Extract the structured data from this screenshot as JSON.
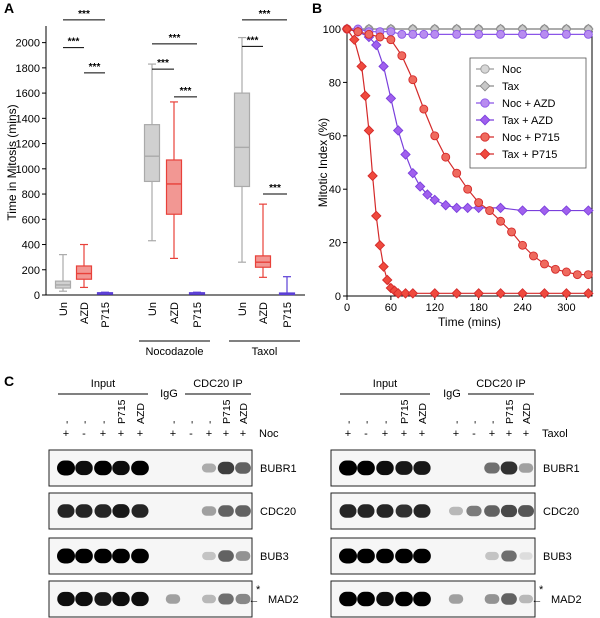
{
  "panel_labels": {
    "a": "A",
    "b": "B",
    "c": "C"
  },
  "chart_data": [
    {
      "type": "box",
      "panel": "A",
      "ylabel": "Time in Mitosis (mins)",
      "ylim": [
        0,
        2100
      ],
      "yticks": [
        0,
        200,
        400,
        600,
        800,
        1000,
        1200,
        1400,
        1600,
        1800,
        2000
      ],
      "boxes": [
        {
          "group": "none",
          "label": "Un",
          "color": "#aaaaaa",
          "min": 30,
          "q1": 55,
          "median": 80,
          "q3": 110,
          "max": 320
        },
        {
          "group": "none",
          "label": "AZD",
          "color": "#e8413a",
          "min": 60,
          "q1": 125,
          "median": 170,
          "q3": 230,
          "max": 400
        },
        {
          "group": "none",
          "label": "P715",
          "color": "#5b3fd6",
          "min": 8,
          "q1": 12,
          "median": 15,
          "q3": 18,
          "max": 22
        },
        {
          "group": "Nocodazole",
          "label": "Un",
          "color": "#aaaaaa",
          "min": 430,
          "q1": 900,
          "median": 1100,
          "q3": 1350,
          "max": 1830
        },
        {
          "group": "Nocodazole",
          "label": "AZD",
          "color": "#e8413a",
          "min": 290,
          "q1": 640,
          "median": 880,
          "q3": 1070,
          "max": 1530
        },
        {
          "group": "Nocodazole",
          "label": "P715",
          "color": "#5b3fd6",
          "min": 8,
          "q1": 12,
          "median": 15,
          "q3": 18,
          "max": 22
        },
        {
          "group": "Taxol",
          "label": "Un",
          "color": "#aaaaaa",
          "min": 260,
          "q1": 860,
          "median": 1170,
          "q3": 1600,
          "max": 2040
        },
        {
          "group": "Taxol",
          "label": "AZD",
          "color": "#e8413a",
          "min": 140,
          "q1": 220,
          "median": 260,
          "q3": 310,
          "max": 720
        },
        {
          "group": "Taxol",
          "label": "P715",
          "color": "#5b3fd6",
          "min": 5,
          "q1": 10,
          "median": 13,
          "q3": 16,
          "max": 145
        }
      ],
      "group_labels": [
        "Nocodazole",
        "Taxol"
      ],
      "significance": [
        {
          "from": 0,
          "to": 2,
          "y": 2180,
          "label": "***"
        },
        {
          "from": 0,
          "to": 1,
          "y": 1960,
          "label": "***"
        },
        {
          "from": 1,
          "to": 2,
          "y": 1760,
          "label": "***"
        },
        {
          "from": 3,
          "to": 5,
          "y": 1990,
          "label": "***"
        },
        {
          "from": 3,
          "to": 4,
          "y": 1790,
          "label": "***"
        },
        {
          "from": 4,
          "to": 5,
          "y": 1570,
          "label": "***"
        },
        {
          "from": 6,
          "to": 8,
          "y": 2180,
          "label": "***"
        },
        {
          "from": 6,
          "to": 7,
          "y": 1970,
          "label": "***"
        },
        {
          "from": 7,
          "to": 8,
          "y": 800,
          "label": "***"
        }
      ]
    },
    {
      "type": "line",
      "panel": "B",
      "xlabel": "Time (mins)",
      "ylabel": "Mitotic Index (%)",
      "xlim": [
        0,
        335
      ],
      "ylim": [
        0,
        100
      ],
      "xticks": [
        0,
        60,
        120,
        180,
        240,
        300
      ],
      "yticks": [
        0,
        20,
        40,
        60,
        80,
        100
      ],
      "legend_position": "right",
      "series": [
        {
          "name": "Noc",
          "color": "#9a9a9a",
          "marker": "circle",
          "fill": "#d6d6d6",
          "x": [
            0,
            30,
            60,
            90,
            120,
            150,
            180,
            210,
            240,
            270,
            300,
            330
          ],
          "y": [
            100,
            100,
            100,
            100,
            100,
            100,
            100,
            100,
            100,
            100,
            100,
            100
          ]
        },
        {
          "name": "Tax",
          "color": "#8a8a8a",
          "marker": "diamond",
          "fill": "#c8c8c8",
          "x": [
            0,
            30,
            60,
            90,
            120,
            150,
            180,
            210,
            240,
            270,
            300,
            330
          ],
          "y": [
            100,
            100,
            100,
            100,
            100,
            100,
            100,
            100,
            100,
            100,
            100,
            100
          ]
        },
        {
          "name": "Noc + AZD",
          "color": "#8a55e8",
          "marker": "circle",
          "fill": "#b88cf0",
          "x": [
            0,
            15,
            30,
            45,
            60,
            75,
            90,
            105,
            120,
            150,
            180,
            210,
            240,
            270,
            300,
            330
          ],
          "y": [
            100,
            100,
            99,
            99,
            99,
            98,
            98,
            98,
            98,
            98,
            98,
            98,
            98,
            98,
            98,
            98
          ]
        },
        {
          "name": "Tax + AZD",
          "color": "#7a3fdc",
          "marker": "diamond",
          "fill": "#a060ee",
          "x": [
            0,
            15,
            30,
            40,
            50,
            60,
            70,
            80,
            90,
            100,
            110,
            120,
            135,
            150,
            165,
            180,
            210,
            240,
            270,
            300,
            330
          ],
          "y": [
            100,
            99,
            97,
            94,
            86,
            74,
            62,
            53,
            46,
            41,
            38,
            36,
            34,
            33,
            33,
            33,
            33,
            32,
            32,
            32,
            32
          ]
        },
        {
          "name": "Noc + P715",
          "color": "#d42a2a",
          "marker": "circle",
          "fill": "#ef6a5e",
          "x": [
            0,
            15,
            30,
            45,
            60,
            75,
            90,
            105,
            120,
            135,
            150,
            165,
            180,
            195,
            210,
            225,
            240,
            255,
            270,
            285,
            300,
            315,
            330
          ],
          "y": [
            100,
            99,
            98,
            97,
            96,
            90,
            81,
            70,
            60,
            52,
            46,
            40,
            35,
            32,
            28,
            24,
            19,
            15,
            12,
            10,
            9,
            8,
            8
          ]
        },
        {
          "name": "Tax + P715",
          "color": "#d42a2a",
          "marker": "diamond",
          "fill": "#ef4a3e",
          "x": [
            0,
            10,
            20,
            25,
            30,
            35,
            40,
            45,
            50,
            55,
            60,
            65,
            70,
            80,
            90,
            120,
            150,
            180,
            210,
            240,
            270,
            300,
            330
          ],
          "y": [
            100,
            96,
            86,
            75,
            62,
            45,
            30,
            19,
            11,
            6,
            3,
            2,
            1,
            1,
            1,
            1,
            1,
            1,
            1,
            1,
            1,
            1,
            1
          ]
        }
      ]
    }
  ],
  "blots": [
    {
      "title_input": "Input",
      "title_igg": "IgG",
      "title_ip": "CDC20 IP",
      "treatment": "Noc",
      "drug_labels": [
        "-",
        "-",
        "-",
        "P715",
        "AZD",
        "-",
        "-",
        "-",
        "P715",
        "AZD"
      ],
      "signs": [
        "+",
        "-",
        "+",
        "+",
        "+",
        "+",
        "-",
        "+",
        "+",
        "+"
      ],
      "rows": [
        {
          "label": "BUBR1",
          "marker": "",
          "note": ""
        },
        {
          "label": "CDC20",
          "marker": "",
          "note": ""
        },
        {
          "label": "BUB3",
          "marker": "",
          "note": ""
        },
        {
          "label": "MAD2",
          "marker": "←",
          "note": "*"
        }
      ]
    },
    {
      "title_input": "Input",
      "title_igg": "IgG",
      "title_ip": "CDC20 IP",
      "treatment": "Taxol",
      "drug_labels": [
        "-",
        "-",
        "-",
        "P715",
        "AZD",
        "-",
        "-",
        "-",
        "P715",
        "AZD"
      ],
      "signs": [
        "+",
        "-",
        "+",
        "+",
        "+",
        "+",
        "-",
        "+",
        "+",
        "+"
      ],
      "rows": [
        {
          "label": "BUBR1",
          "marker": "",
          "note": ""
        },
        {
          "label": "CDC20",
          "marker": "",
          "note": ""
        },
        {
          "label": "BUB3",
          "marker": "",
          "note": ""
        },
        {
          "label": "MAD2",
          "marker": "←",
          "note": "*"
        }
      ]
    }
  ]
}
